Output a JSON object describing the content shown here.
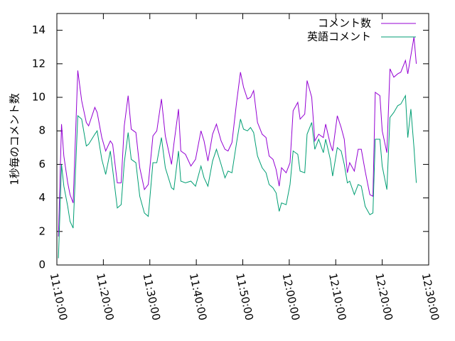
{
  "chart_data": {
    "type": "line",
    "ylabel": "1秒毎のコメント数",
    "x": [
      "11:10:20",
      "11:11:00",
      "11:11:30",
      "11:12:20",
      "11:12:50",
      "11:13:30",
      "11:14:30",
      "11:15:20",
      "11:16:20",
      "11:16:50",
      "11:18:10",
      "11:18:40",
      "11:19:40",
      "11:20:30",
      "11:21:30",
      "11:22:00",
      "11:23:00",
      "11:23:50",
      "11:24:30",
      "11:25:20",
      "11:26:00",
      "11:27:00",
      "11:27:50",
      "11:28:50",
      "11:29:40",
      "11:30:40",
      "11:31:30",
      "11:32:30",
      "11:33:20",
      "11:34:40",
      "11:35:10",
      "11:36:10",
      "11:36:40",
      "11:37:40",
      "11:38:50",
      "11:39:50",
      "11:41:00",
      "11:41:40",
      "11:42:30",
      "11:43:30",
      "11:44:20",
      "11:45:20",
      "11:46:10",
      "11:46:50",
      "11:47:40",
      "11:48:40",
      "11:49:30",
      "11:50:10",
      "11:51:00",
      "11:51:40",
      "11:52:20",
      "11:53:10",
      "11:54:10",
      "11:55:00",
      "11:55:40",
      "11:56:30",
      "11:57:10",
      "11:57:50",
      "11:58:20",
      "11:59:20",
      "12:00:10",
      "12:00:50",
      "12:01:50",
      "12:02:20",
      "12:03:20",
      "12:03:50",
      "12:04:50",
      "12:05:30",
      "12:06:20",
      "12:07:20",
      "12:07:50",
      "12:08:50",
      "12:09:20",
      "12:10:20",
      "12:11:10",
      "12:11:50",
      "12:12:30",
      "12:13:00",
      "12:14:00",
      "12:14:50",
      "12:15:30",
      "12:16:20",
      "12:17:20",
      "12:18:00",
      "12:18:30",
      "12:19:30",
      "12:20:00",
      "12:21:00",
      "12:21:40",
      "12:22:30",
      "12:23:20",
      "12:24:00",
      "12:25:00",
      "12:25:30",
      "12:26:10",
      "12:26:50",
      "12:27:20"
    ],
    "series": [
      {
        "name": "コメント数",
        "color": "#9400d3",
        "values": [
          1.7,
          8.4,
          6.5,
          4.9,
          4.2,
          3.7,
          11.6,
          9.8,
          8.5,
          8.3,
          9.4,
          9.1,
          7.6,
          6.8,
          7.4,
          7.2,
          4.9,
          4.9,
          8.3,
          10.1,
          8.1,
          7.9,
          5.8,
          4.5,
          4.8,
          7.7,
          8.0,
          9.9,
          7.7,
          6.0,
          7.2,
          9.3,
          6.8,
          6.6,
          5.9,
          6.3,
          8.0,
          7.4,
          6.2,
          7.8,
          8.4,
          7.4,
          6.9,
          6.8,
          7.3,
          9.7,
          11.5,
          10.6,
          9.9,
          10.0,
          10.4,
          8.5,
          7.8,
          7.6,
          6.5,
          6.3,
          5.7,
          4.7,
          5.8,
          5.5,
          6.1,
          9.2,
          9.7,
          8.7,
          9.0,
          11.0,
          10.0,
          7.4,
          7.8,
          7.6,
          8.4,
          7.2,
          6.8,
          8.9,
          8.2,
          7.5,
          5.5,
          6.1,
          5.6,
          6.9,
          6.9,
          5.6,
          4.2,
          4.1,
          10.3,
          10.1,
          8.0,
          6.7,
          11.7,
          11.2,
          11.4,
          11.5,
          12.2,
          11.4,
          12.5,
          13.6,
          12.0
        ]
      },
      {
        "name": "英語コメント",
        "color": "#009e73",
        "values": [
          0.4,
          6.0,
          4.7,
          3.5,
          2.6,
          2.2,
          8.9,
          8.7,
          7.1,
          7.2,
          7.8,
          8.0,
          6.3,
          5.4,
          6.8,
          5.7,
          3.4,
          3.6,
          6.1,
          7.9,
          6.3,
          6.1,
          4.1,
          3.1,
          2.9,
          6.1,
          6.1,
          7.6,
          5.8,
          4.6,
          4.5,
          6.8,
          5.0,
          4.9,
          5.0,
          4.7,
          5.9,
          5.2,
          4.7,
          6.2,
          6.9,
          6.0,
          5.2,
          5.6,
          5.5,
          7.3,
          8.7,
          8.1,
          8.0,
          8.2,
          7.9,
          6.5,
          5.8,
          5.5,
          4.8,
          4.6,
          4.3,
          3.2,
          3.7,
          3.6,
          4.8,
          6.8,
          6.6,
          5.6,
          5.5,
          7.8,
          8.5,
          6.9,
          7.5,
          6.7,
          7.5,
          6.3,
          5.3,
          7.0,
          6.8,
          6.0,
          4.9,
          5.0,
          4.2,
          4.8,
          4.7,
          3.5,
          3.0,
          3.1,
          7.5,
          7.5,
          5.9,
          4.5,
          8.8,
          9.1,
          9.5,
          9.6,
          10.1,
          7.6,
          9.3,
          7.0,
          4.9
        ]
      }
    ],
    "xlim": [
      "11:10:00",
      "12:30:00"
    ],
    "xticks": [
      "11:10:00",
      "11:20:00",
      "11:30:00",
      "11:40:00",
      "11:50:00",
      "12:00:00",
      "12:10:00",
      "12:20:00",
      "12:30:00"
    ],
    "ylim": [
      0,
      15
    ],
    "yticks": [
      0,
      2,
      4,
      6,
      8,
      10,
      12,
      14
    ],
    "legend": "top-right"
  }
}
